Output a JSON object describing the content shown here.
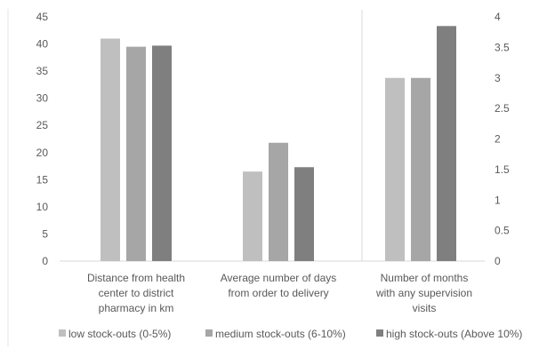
{
  "chart_data": [
    {
      "type": "bar",
      "axis": "left",
      "ylim": [
        0,
        45
      ],
      "yticks": [
        0,
        5,
        10,
        15,
        20,
        25,
        30,
        35,
        40,
        45
      ],
      "gridlines": false,
      "categories": [
        [
          "Distance from health",
          "center to district",
          "pharmacy in km"
        ],
        [
          "Average number of days",
          "from order to delivery"
        ]
      ],
      "series": [
        {
          "name": "low stock-outs (0-5%)",
          "values": [
            41,
            16.5
          ]
        },
        {
          "name": "medium stock-outs (6-10%)",
          "values": [
            39.5,
            21.8
          ]
        },
        {
          "name": "high stock-outs (Above 10%)",
          "values": [
            39.7,
            17.3
          ]
        }
      ]
    },
    {
      "type": "bar",
      "axis": "right",
      "ylim": [
        0,
        4
      ],
      "yticks": [
        "0",
        "0.5",
        "1",
        "1.5",
        "2",
        "2.5",
        "3",
        "3.5",
        "4"
      ],
      "gridlines": false,
      "categories": [
        [
          "Number of months",
          "with any  supervision",
          "visits"
        ]
      ],
      "series": [
        {
          "name": "low stock-outs (0-5%)",
          "values": [
            3
          ]
        },
        {
          "name": "medium stock-outs (6-10%)",
          "values": [
            3
          ]
        },
        {
          "name": "high stock-outs (Above 10%)",
          "values": [
            3.85
          ]
        }
      ]
    }
  ],
  "legend": {
    "position": "bottom",
    "entries": [
      {
        "label": "low stock-outs (0-5%)",
        "color": "#BFBFBF"
      },
      {
        "label": "medium stock-outs (6-10%)",
        "color": "#A6A6A6"
      },
      {
        "label": "high stock-outs (Above 10%)",
        "color": "#7F7F7F"
      }
    ]
  },
  "colors": {
    "series": [
      "#BFBFBF",
      "#A6A6A6",
      "#7F7F7F"
    ],
    "axis": "#D9D9D9",
    "text": "#595959"
  }
}
